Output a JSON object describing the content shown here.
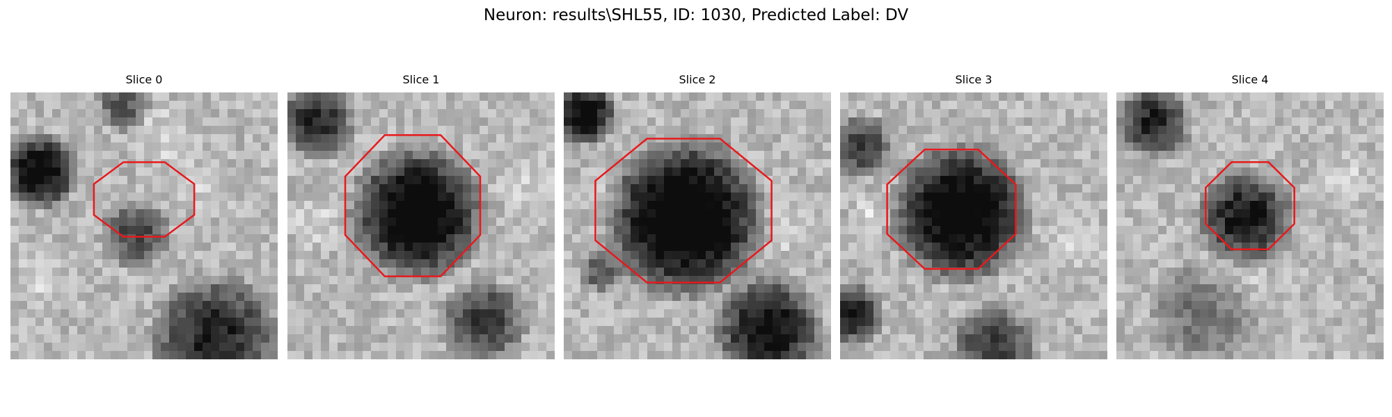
{
  "figure": {
    "title": "Neuron: results\\SHL55, ID: 1030, Predicted Label: DV"
  },
  "slices": [
    {
      "title": "Slice 0"
    },
    {
      "title": "Slice 1"
    },
    {
      "title": "Slice 2"
    },
    {
      "title": "Slice 3"
    },
    {
      "title": "Slice 4"
    }
  ],
  "colors": {
    "contour": "#e8191c",
    "background": "#ffffff",
    "colormap": "gray"
  }
}
